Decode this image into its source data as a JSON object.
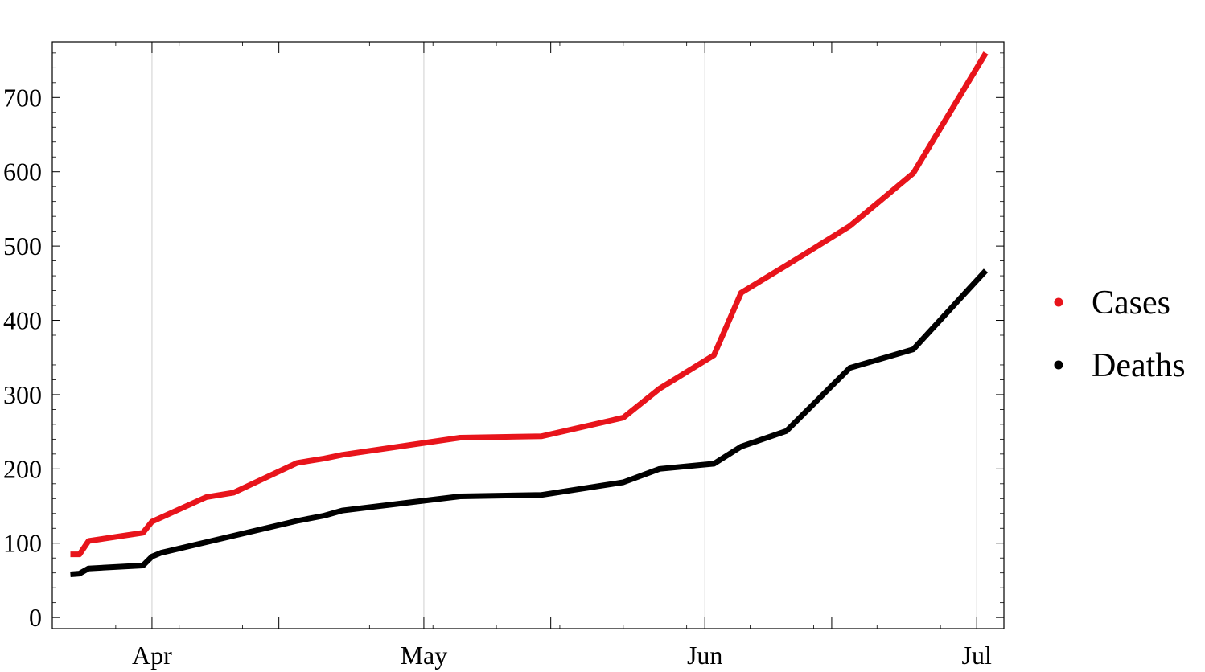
{
  "chart_data": {
    "type": "line",
    "title": "",
    "xlabel": "",
    "ylabel": "",
    "x_axis_type": "date",
    "xlim": [
      "2020-03-21",
      "2020-07-04"
    ],
    "ylim": [
      -15,
      775
    ],
    "x_ticks": [
      {
        "date": "2020-04-01",
        "label": "Apr"
      },
      {
        "date": "2020-05-01",
        "label": "May"
      },
      {
        "date": "2020-06-01",
        "label": "Jun"
      },
      {
        "date": "2020-07-01",
        "label": "Jul"
      }
    ],
    "x_minor_ticks": [
      "2020-04-15",
      "2020-05-15",
      "2020-06-15"
    ],
    "y_ticks": [
      0,
      100,
      200,
      300,
      400,
      500,
      600,
      700
    ],
    "y_minor_step": 20,
    "grid": {
      "vertical": true,
      "horizontal": false
    },
    "legend_position": "right",
    "series": [
      {
        "name": "Cases",
        "color": "#e8141b",
        "points": [
          {
            "x": "2020-03-23",
            "y": 85
          },
          {
            "x": "2020-03-24",
            "y": 85
          },
          {
            "x": "2020-03-25",
            "y": 103
          },
          {
            "x": "2020-03-31",
            "y": 114
          },
          {
            "x": "2020-04-01",
            "y": 129
          },
          {
            "x": "2020-04-07",
            "y": 162
          },
          {
            "x": "2020-04-10",
            "y": 168
          },
          {
            "x": "2020-04-17",
            "y": 208
          },
          {
            "x": "2020-04-20",
            "y": 214
          },
          {
            "x": "2020-04-22",
            "y": 219
          },
          {
            "x": "2020-05-05",
            "y": 242
          },
          {
            "x": "2020-05-14",
            "y": 244
          },
          {
            "x": "2020-05-23",
            "y": 269
          },
          {
            "x": "2020-05-27",
            "y": 308
          },
          {
            "x": "2020-06-02",
            "y": 353
          },
          {
            "x": "2020-06-05",
            "y": 437
          },
          {
            "x": "2020-06-10",
            "y": 474
          },
          {
            "x": "2020-06-17",
            "y": 527
          },
          {
            "x": "2020-06-24",
            "y": 598
          },
          {
            "x": "2020-07-02",
            "y": 760
          }
        ]
      },
      {
        "name": "Deaths",
        "color": "#000000",
        "points": [
          {
            "x": "2020-03-23",
            "y": 58
          },
          {
            "x": "2020-03-24",
            "y": 59
          },
          {
            "x": "2020-03-25",
            "y": 66
          },
          {
            "x": "2020-03-31",
            "y": 70
          },
          {
            "x": "2020-04-01",
            "y": 82
          },
          {
            "x": "2020-04-02",
            "y": 87
          },
          {
            "x": "2020-04-10",
            "y": 110
          },
          {
            "x": "2020-04-17",
            "y": 130
          },
          {
            "x": "2020-04-20",
            "y": 137
          },
          {
            "x": "2020-04-22",
            "y": 144
          },
          {
            "x": "2020-05-05",
            "y": 163
          },
          {
            "x": "2020-05-14",
            "y": 165
          },
          {
            "x": "2020-05-23",
            "y": 182
          },
          {
            "x": "2020-05-27",
            "y": 200
          },
          {
            "x": "2020-06-02",
            "y": 207
          },
          {
            "x": "2020-06-05",
            "y": 230
          },
          {
            "x": "2020-06-10",
            "y": 251
          },
          {
            "x": "2020-06-17",
            "y": 336
          },
          {
            "x": "2020-06-24",
            "y": 361
          },
          {
            "x": "2020-07-02",
            "y": 467
          }
        ]
      }
    ]
  }
}
